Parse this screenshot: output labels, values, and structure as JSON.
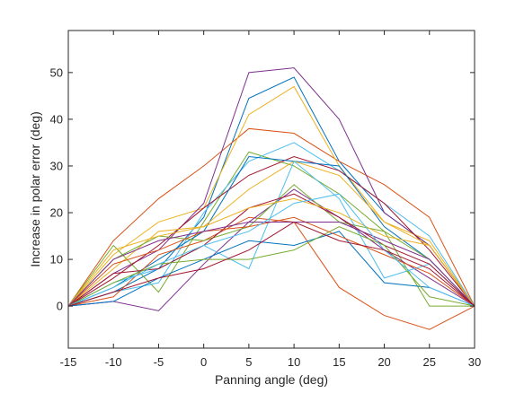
{
  "chart_data": {
    "type": "line",
    "xlabel": "Panning angle (deg)",
    "ylabel": "Increase in polar error (deg)",
    "x": [
      -15,
      -10,
      -5,
      0,
      5,
      10,
      15,
      20,
      25,
      30
    ],
    "xlim": [
      -15,
      30
    ],
    "ylim": [
      -9,
      59
    ],
    "xticks": [
      -15,
      -10,
      -5,
      0,
      5,
      10,
      15,
      20,
      25,
      30
    ],
    "yticks": [
      0,
      10,
      20,
      30,
      40,
      50
    ],
    "grid": false,
    "series": [
      {
        "color": "#0072bd",
        "values": [
          0,
          3,
          8,
          19,
          44.5,
          49,
          31,
          20,
          13,
          0
        ]
      },
      {
        "color": "#d95319",
        "values": [
          0,
          14,
          23,
          30,
          38,
          37,
          31,
          26,
          19,
          0
        ]
      },
      {
        "color": "#edb120",
        "values": [
          0,
          11,
          18,
          21,
          41,
          47,
          30,
          18,
          14,
          0
        ]
      },
      {
        "color": "#7e2f8e",
        "values": [
          0,
          7,
          12,
          22,
          50,
          51,
          40,
          20,
          13,
          0
        ]
      },
      {
        "color": "#77ac30",
        "values": [
          0,
          13,
          3,
          18,
          33,
          30,
          24,
          16,
          0,
          0
        ]
      },
      {
        "color": "#4dbeee",
        "values": [
          0,
          3,
          5,
          20,
          31,
          35,
          29,
          22,
          15,
          0
        ]
      },
      {
        "color": "#a2142f",
        "values": [
          0,
          6,
          13,
          21,
          28,
          32,
          29,
          22,
          12,
          0
        ]
      },
      {
        "color": "#0072bd",
        "values": [
          0,
          4,
          10,
          16,
          32,
          31,
          30,
          17,
          10,
          0
        ]
      },
      {
        "color": "#d95319",
        "values": [
          0,
          2,
          11,
          14,
          19,
          18,
          4,
          -2,
          -5,
          0
        ]
      },
      {
        "color": "#edb120",
        "values": [
          0,
          8,
          16,
          17,
          25,
          31,
          28,
          18,
          13,
          0
        ]
      },
      {
        "color": "#7e2f8e",
        "values": [
          0,
          1,
          -1,
          9,
          18,
          25,
          19,
          12,
          6,
          0
        ]
      },
      {
        "color": "#77ac30",
        "values": [
          0,
          10,
          15,
          14,
          17,
          26,
          18,
          16,
          10,
          0
        ]
      },
      {
        "color": "#4dbeee",
        "values": [
          0,
          5,
          8,
          13,
          8,
          31,
          23,
          6,
          9,
          0
        ]
      },
      {
        "color": "#a2142f",
        "values": [
          0,
          7,
          8,
          13,
          21,
          24,
          19,
          13,
          9,
          0
        ]
      },
      {
        "color": "#0072bd",
        "values": [
          0,
          1,
          6,
          10,
          14,
          13,
          16,
          5,
          4,
          0
        ]
      },
      {
        "color": "#d95319",
        "values": [
          0,
          9,
          12,
          16,
          17,
          19,
          15,
          11,
          7,
          0
        ]
      },
      {
        "color": "#edb120",
        "values": [
          0,
          12,
          15,
          17,
          21,
          23,
          20,
          15,
          13,
          0
        ]
      },
      {
        "color": "#7e2f8e",
        "values": [
          0,
          10,
          14,
          16,
          18,
          18,
          18,
          14,
          10,
          0
        ]
      },
      {
        "color": "#77ac30",
        "values": [
          0,
          5,
          9,
          10,
          10,
          12,
          17,
          13,
          2,
          0
        ]
      },
      {
        "color": "#4dbeee",
        "values": [
          0,
          4,
          9,
          13,
          16,
          22,
          24,
          12,
          4,
          0
        ]
      },
      {
        "color": "#a2142f",
        "values": [
          0,
          3,
          6,
          8,
          12,
          18,
          14,
          12,
          8,
          0
        ]
      }
    ]
  }
}
